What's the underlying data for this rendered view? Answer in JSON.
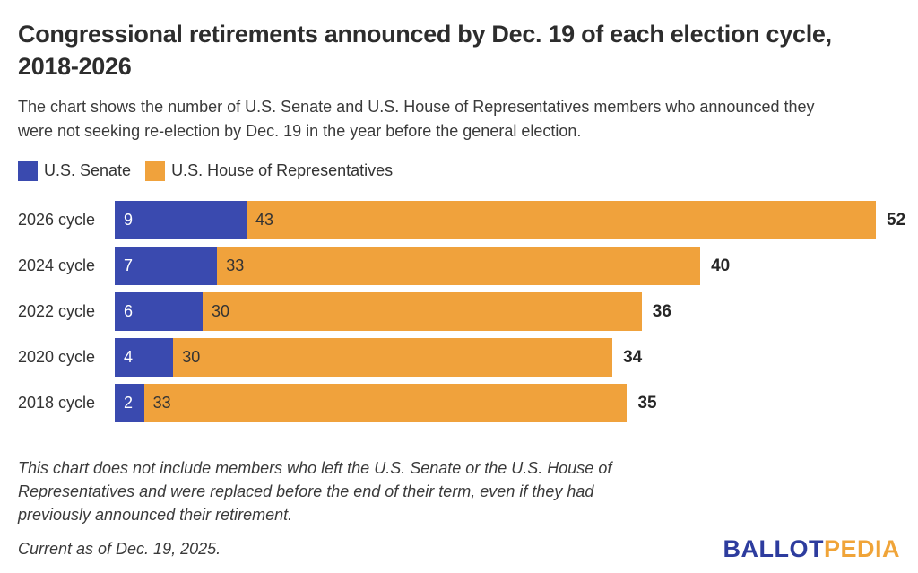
{
  "header": {
    "title": "Congressional retirements announced by Dec. 19 of each election cycle,\n2018-2026",
    "subtitle": "The chart shows the number of U.S. Senate and U.S. House of Representatives members who announced they\nwere not seeking re-election by Dec. 19 in the year before the general election."
  },
  "legend": [
    {
      "label": "U.S. Senate",
      "color": "#3A4AAF"
    },
    {
      "label": "U.S. House of Representatives",
      "color": "#F0A23C"
    }
  ],
  "chart_data": {
    "type": "bar",
    "orientation": "horizontal",
    "stacked": true,
    "title": "Congressional retirements announced by Dec. 19 of each election cycle, 2018-2026",
    "categories": [
      "2026 cycle",
      "2024 cycle",
      "2022 cycle",
      "2020 cycle",
      "2018 cycle"
    ],
    "series": [
      {
        "name": "U.S. Senate",
        "color": "#3A4AAF",
        "values": [
          9,
          7,
          6,
          4,
          2
        ]
      },
      {
        "name": "U.S. House of Representatives",
        "color": "#F0A23C",
        "values": [
          43,
          33,
          30,
          30,
          33
        ]
      }
    ],
    "totals": [
      52,
      40,
      36,
      34,
      35
    ],
    "xlim": [
      0,
      52
    ],
    "grid": false,
    "legend_position": "top",
    "value_labels": "inside-left",
    "total_labels": "outside-right"
  },
  "footnote": "This chart does not include members who left the U.S. Senate or the U.S. House of\nRepresentatives and were replaced before the end of their term, even if they had\npreviously announced their retirement.",
  "footer": {
    "current_as_of": "Current as of Dec. 19, 2025.",
    "logo": {
      "part1": "BALLOT",
      "part2": "PEDIA",
      "color1": "#2D3C9E",
      "color2": "#F0A438"
    }
  }
}
